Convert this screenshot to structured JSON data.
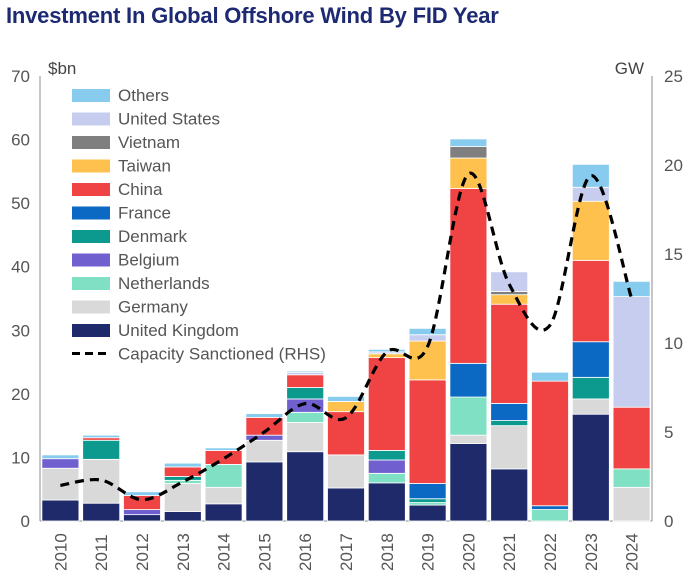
{
  "chart_data": {
    "type": "bar",
    "title": "Investment In Global Offshore Wind By FID Year",
    "ylabel": "$bn",
    "y2label": "GW",
    "ylim": [
      0,
      70
    ],
    "y2lim": [
      0,
      25
    ],
    "yticks": [
      0,
      10,
      20,
      30,
      40,
      50,
      60,
      70
    ],
    "y2ticks": [
      0,
      5,
      10,
      15,
      20,
      25
    ],
    "categories": [
      "2010",
      "2011",
      "2012",
      "2013",
      "2014",
      "2015",
      "2016",
      "2017",
      "2018",
      "2019",
      "2020",
      "2021",
      "2022",
      "2023",
      "2024"
    ],
    "series": [
      {
        "name": "United Kingdom",
        "color": "#1f2a6b",
        "values": [
          3.3,
          2.8,
          1.0,
          1.5,
          2.7,
          9.3,
          10.9,
          5.2,
          6.0,
          2.5,
          12.2,
          8.2,
          0,
          16.8,
          0
        ]
      },
      {
        "name": "Germany",
        "color": "#d9d9d9",
        "values": [
          5.0,
          6.9,
          0,
          4.4,
          2.6,
          3.4,
          4.6,
          5.2,
          0,
          0,
          1.3,
          6.8,
          0,
          2.4,
          5.3
        ]
      },
      {
        "name": "Netherlands",
        "color": "#7fe0c3",
        "values": [
          0,
          0,
          0,
          0.5,
          3.6,
          0,
          1.6,
          0,
          1.5,
          0.4,
          6.0,
          0,
          1.8,
          0,
          2.9
        ]
      },
      {
        "name": "Belgium",
        "color": "#6f5fcf",
        "values": [
          1.5,
          0,
          0.8,
          0,
          0,
          0.8,
          2.1,
          0,
          2.1,
          0,
          0,
          0,
          0,
          0,
          0
        ]
      },
      {
        "name": "Denmark",
        "color": "#0d9a8e",
        "values": [
          0,
          3.0,
          0,
          0.6,
          0,
          0,
          1.8,
          0,
          1.5,
          0.6,
          0,
          0.8,
          0,
          3.4,
          0
        ]
      },
      {
        "name": "France",
        "color": "#0b68c3",
        "values": [
          0,
          0,
          0,
          0,
          0,
          0,
          0,
          0,
          0,
          2.4,
          5.3,
          2.7,
          0.6,
          5.6,
          0
        ]
      },
      {
        "name": "China",
        "color": "#f04444",
        "values": [
          0,
          0.4,
          2.2,
          1.5,
          2.2,
          2.8,
          2.0,
          6.8,
          14.6,
          16.3,
          27.5,
          15.6,
          19.6,
          12.8,
          9.7
        ]
      },
      {
        "name": "Taiwan",
        "color": "#fec14e",
        "values": [
          0,
          0,
          0,
          0,
          0,
          0,
          0,
          1.6,
          0.6,
          6.1,
          4.8,
          1.5,
          0,
          9.3,
          0
        ]
      },
      {
        "name": "Vietnam",
        "color": "#7f7f7f",
        "values": [
          0,
          0,
          0,
          0,
          0,
          0,
          0,
          0,
          0,
          0,
          1.8,
          0.5,
          0,
          0,
          0
        ]
      },
      {
        "name": "United States",
        "color": "#c7cdef",
        "values": [
          0,
          0,
          0,
          0,
          0,
          0,
          0.4,
          0,
          0.3,
          1.0,
          0,
          3.1,
          0,
          2.2,
          17.4
        ]
      },
      {
        "name": "Others",
        "color": "#87cbee",
        "values": [
          0.6,
          0.4,
          0.6,
          0.6,
          0.4,
          0.6,
          0.2,
          0.8,
          0.4,
          1.0,
          1.2,
          0,
          1.4,
          3.6,
          2.4
        ]
      }
    ],
    "line": {
      "name": "Capacity Sanctioned (RHS)",
      "axis": "right",
      "color": "#000000",
      "values": [
        2.0,
        2.3,
        1.2,
        2.2,
        3.5,
        5.0,
        6.6,
        5.8,
        9.5,
        9.8,
        19.5,
        13.3,
        11.0,
        19.4,
        12.5
      ]
    },
    "legend": {
      "placement": "top-left",
      "entries": [
        "Others",
        "United States",
        "Vietnam",
        "Taiwan",
        "China",
        "France",
        "Denmark",
        "Belgium",
        "Netherlands",
        "Germany",
        "United Kingdom",
        "Capacity Sanctioned (RHS)"
      ]
    }
  }
}
